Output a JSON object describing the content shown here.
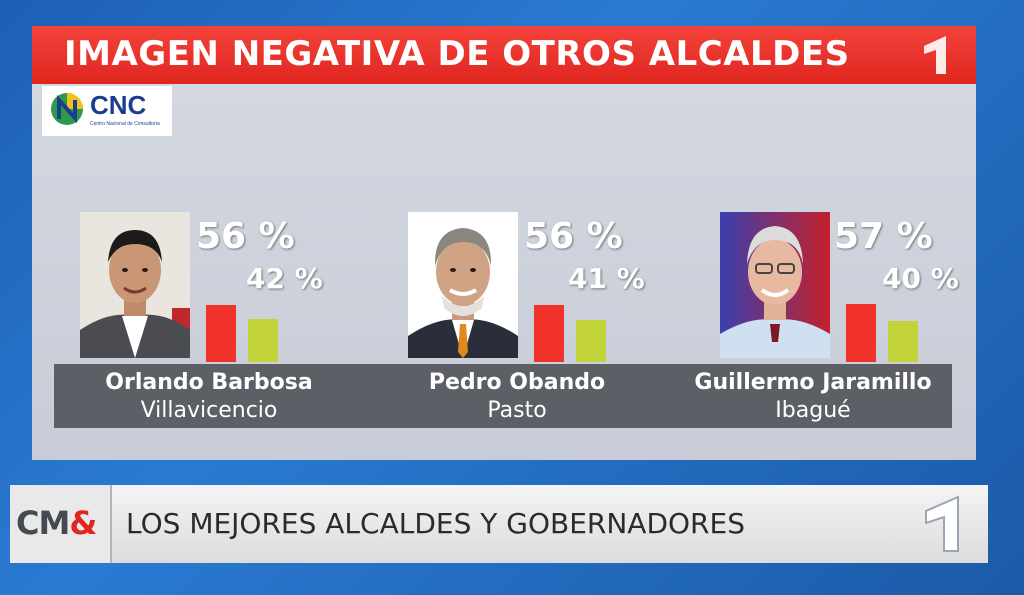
{
  "title": "IMAGEN NEGATIVA DE OTROS ALCALDES",
  "source_logo": {
    "text": "CNC",
    "subtitle": "Centro Nacional de Consultoría"
  },
  "colors": {
    "negative": "#f0322b",
    "positive": "#c3d43a",
    "title_bar": "#e8302a"
  },
  "chart_data": {
    "type": "bar",
    "title": "IMAGEN NEGATIVA DE OTROS ALCALDES",
    "xlabel": "",
    "ylabel": "",
    "ylim": [
      0,
      100
    ],
    "categories": [
      "Orlando Barbosa Villavicencio",
      "Pedro Obando Pasto",
      "Guillermo Jaramillo Ibagué"
    ],
    "series": [
      {
        "values": [
          56,
          56,
          57
        ],
        "color": "#f0322b"
      },
      {
        "values": [
          42,
          41,
          40
        ],
        "color": "#c3d43a"
      }
    ],
    "data_labels": [
      [
        "56 %",
        "42 %"
      ],
      [
        "56 %",
        "41 %"
      ],
      [
        "57 %",
        "40 %"
      ]
    ]
  },
  "candidates": [
    {
      "name": "Orlando Barbosa",
      "city": "Villavicencio",
      "negative_label": "56 %",
      "positive_label": "42 %"
    },
    {
      "name": "Pedro Obando",
      "city": "Pasto",
      "negative_label": "56 %",
      "positive_label": "41 %"
    },
    {
      "name": "Guillermo Jaramillo",
      "city": "Ibagué",
      "negative_label": "57 %",
      "positive_label": "40 %"
    }
  ],
  "ticker": {
    "logo_text": "CM",
    "logo_amp": "&",
    "headline": "LOS MEJORES ALCALDES Y GOBERNADORES"
  },
  "channel_badge": "channel-one-icon"
}
